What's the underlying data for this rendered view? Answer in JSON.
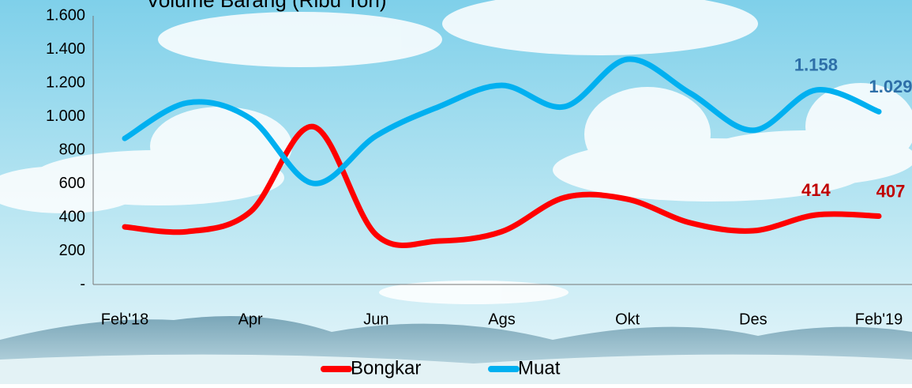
{
  "chart_data": {
    "type": "line",
    "title": "Volume Barang (Ribu Ton)",
    "categories": [
      "Feb'18",
      null,
      "Apr",
      null,
      "Jun",
      null,
      "Ags",
      null,
      "Okt",
      null,
      "Des",
      null,
      "Feb'19"
    ],
    "series": [
      {
        "name": "Bongkar",
        "color": "#ff0000",
        "values": [
          343,
          315,
          433,
          940,
          296,
          259,
          315,
          518,
          508,
          367,
          320,
          414,
          407
        ],
        "value_labels": [
          null,
          null,
          null,
          null,
          null,
          null,
          null,
          null,
          null,
          null,
          null,
          "414",
          "407"
        ]
      },
      {
        "name": "Muat",
        "color": "#00b0f0",
        "values": [
          870,
          1082,
          988,
          602,
          885,
          1059,
          1186,
          1059,
          1341,
          1139,
          918,
          1158,
          1029
        ],
        "value_labels": [
          null,
          null,
          null,
          null,
          null,
          null,
          null,
          null,
          null,
          null,
          null,
          "1.158",
          "1.029"
        ]
      }
    ],
    "ylim": [
      0,
      1600
    ],
    "yticks": [
      {
        "value": 0,
        "label": "-"
      },
      200,
      400,
      600,
      800,
      {
        "value": 1000,
        "label": "1.000"
      },
      {
        "value": 1200,
        "label": "1.200"
      },
      {
        "value": 1400,
        "label": "1.400"
      },
      {
        "value": 1600,
        "label": "1.600"
      }
    ],
    "legend": "bottom"
  }
}
